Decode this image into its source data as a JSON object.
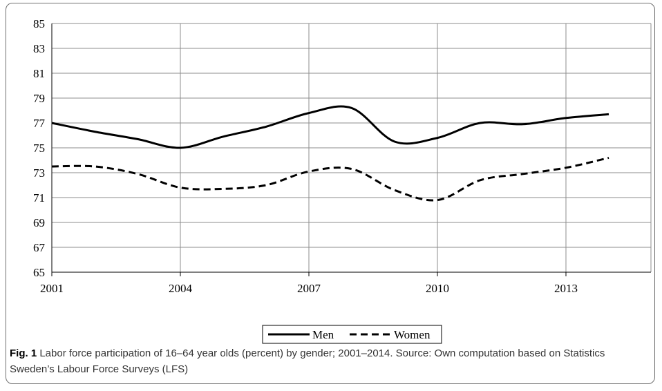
{
  "chart_data": {
    "type": "line",
    "x_ticks": [
      "2001",
      "2004",
      "2007",
      "2010",
      "2013"
    ],
    "ylim": [
      65,
      85
    ],
    "y_ticks": [
      "65",
      "67",
      "69",
      "71",
      "73",
      "75",
      "77",
      "79",
      "81",
      "83",
      "85"
    ],
    "grid": true,
    "legend_placement": "bottom-center",
    "series": [
      {
        "name": "Men",
        "style": "solid",
        "color": "#000000",
        "points": [
          [
            2001,
            77.0
          ],
          [
            2002,
            76.3
          ],
          [
            2003,
            75.7
          ],
          [
            2004,
            75.0
          ],
          [
            2005,
            75.9
          ],
          [
            2006,
            76.7
          ],
          [
            2007,
            77.8
          ],
          [
            2008,
            78.2
          ],
          [
            2009,
            75.5
          ],
          [
            2010,
            75.8
          ],
          [
            2011,
            77.0
          ],
          [
            2012,
            76.9
          ],
          [
            2013,
            77.4
          ],
          [
            2014,
            77.7
          ]
        ]
      },
      {
        "name": "Women",
        "style": "dashed",
        "color": "#000000",
        "points": [
          [
            2001,
            73.5
          ],
          [
            2002,
            73.5
          ],
          [
            2003,
            72.9
          ],
          [
            2004,
            71.8
          ],
          [
            2005,
            71.7
          ],
          [
            2006,
            72.0
          ],
          [
            2007,
            73.1
          ],
          [
            2008,
            73.3
          ],
          [
            2009,
            71.6
          ],
          [
            2010,
            70.8
          ],
          [
            2011,
            72.4
          ],
          [
            2012,
            72.9
          ],
          [
            2013,
            73.4
          ],
          [
            2014,
            74.2
          ]
        ]
      }
    ]
  },
  "caption": {
    "label": "Fig. 1",
    "text": " Labor force participation of 16–64 year olds (percent) by gender; 2001–2014. Source: Own computation based on Statistics Sweden’s Labour Force Surveys (LFS)"
  }
}
